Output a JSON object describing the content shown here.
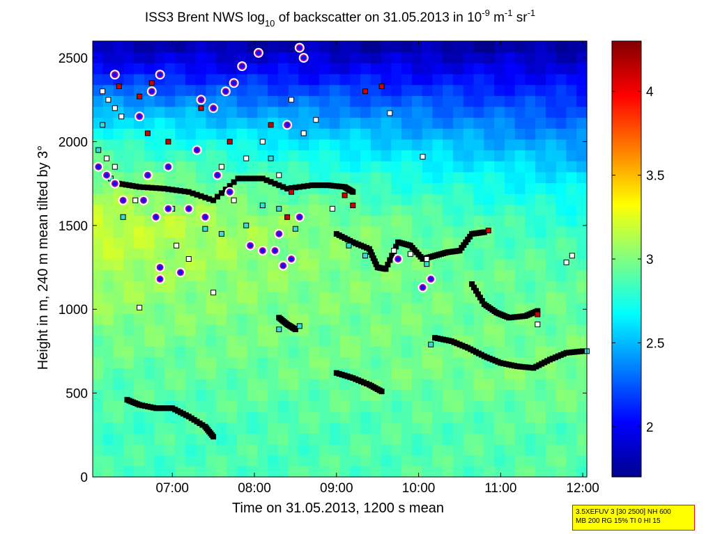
{
  "chart_data": {
    "type": "heatmap",
    "title": {
      "part1": "ISS3 Brent NWS log",
      "sub": "10",
      "part2": " of backscatter on 31.05.2013 in 10",
      "sup1": "-9",
      "part3": " m",
      "sup2": "-1",
      "part4": " sr",
      "sup3": "-1"
    },
    "xlabel": "Time on 31.05.2013, 1200 s mean",
    "ylabel": "Height in m, 240 m mean tilted by 3°",
    "xlim": [
      6.03,
      12.05
    ],
    "ylim": [
      0,
      2600
    ],
    "x_ticks": [
      7,
      8,
      9,
      10,
      11,
      12
    ],
    "x_tick_labels": [
      "07:00",
      "08:00",
      "09:00",
      "10:00",
      "11:00",
      "12:00"
    ],
    "y_ticks": [
      0,
      500,
      1000,
      1500,
      2000,
      2500
    ],
    "y_tick_labels": [
      "0",
      "500",
      "1000",
      "1500",
      "2000",
      "2500"
    ],
    "colorbar": {
      "range": [
        1.7,
        4.3
      ],
      "ticks": [
        2,
        2.5,
        3,
        3.5,
        4
      ],
      "tick_labels": [
        "2",
        "2.5",
        "3",
        "3.5",
        "4"
      ],
      "colormap": "jet"
    },
    "backscatter_profile": {
      "heights": [
        0,
        300,
        600,
        900,
        1200,
        1500,
        1800,
        2000,
        2200,
        2400,
        2600
      ],
      "values_early": [
        2.85,
        2.85,
        2.9,
        3.0,
        3.1,
        3.2,
        3.0,
        2.8,
        2.5,
        2.1,
        1.8
      ],
      "values_late": [
        2.9,
        2.9,
        3.0,
        2.95,
        2.9,
        2.8,
        2.6,
        2.4,
        2.2,
        2.0,
        1.75
      ]
    },
    "series": [
      {
        "marker": "black-square",
        "tracks": [
          {
            "x": [
              6.45,
              6.6,
              6.8,
              7.0,
              7.2,
              7.4,
              7.5
            ],
            "y": [
              460,
              430,
              410,
              410,
              360,
              300,
              240
            ]
          },
          {
            "x": [
              9.0,
              9.2,
              9.4,
              9.55
            ],
            "y": [
              620,
              590,
              550,
              510
            ]
          },
          {
            "x": [
              10.2,
              10.4,
              10.6,
              10.8,
              11.0,
              11.2,
              11.4,
              11.6,
              11.8,
              12.0
            ],
            "y": [
              830,
              810,
              770,
              720,
              680,
              660,
              650,
              700,
              740,
              750
            ]
          },
          {
            "x": [
              10.65,
              10.8,
              10.95,
              11.1,
              11.3,
              11.45
            ],
            "y": [
              1150,
              1030,
              980,
              950,
              960,
              990
            ]
          },
          {
            "x": [
              9.0,
              9.2,
              9.4,
              9.5,
              9.6,
              9.75,
              9.9,
              10.05,
              10.2,
              10.35,
              10.5,
              10.65,
              10.8
            ],
            "y": [
              1450,
              1400,
              1360,
              1250,
              1240,
              1400,
              1380,
              1300,
              1320,
              1340,
              1350,
              1450,
              1460
            ]
          },
          {
            "x": [
              6.35,
              6.6,
              6.9,
              7.2,
              7.5,
              7.8,
              8.1,
              8.4,
              8.7,
              8.9,
              9.1,
              9.2
            ],
            "y": [
              1750,
              1730,
              1720,
              1700,
              1650,
              1780,
              1780,
              1720,
              1740,
              1740,
              1730,
              1700
            ]
          },
          {
            "x": [
              8.3,
              8.4,
              8.5
            ],
            "y": [
              950,
              910,
              880
            ]
          }
        ]
      },
      {
        "marker": "white-square",
        "points": [
          {
            "x": 6.15,
            "y": 2300
          },
          {
            "x": 6.22,
            "y": 2250
          },
          {
            "x": 6.3,
            "y": 2200
          },
          {
            "x": 6.38,
            "y": 2150
          },
          {
            "x": 6.2,
            "y": 1900
          },
          {
            "x": 6.3,
            "y": 1850
          },
          {
            "x": 6.55,
            "y": 1650
          },
          {
            "x": 6.6,
            "y": 1010
          },
          {
            "x": 7.05,
            "y": 1380
          },
          {
            "x": 7.2,
            "y": 1300
          },
          {
            "x": 7.5,
            "y": 1100
          },
          {
            "x": 7.6,
            "y": 1850
          },
          {
            "x": 7.75,
            "y": 1650
          },
          {
            "x": 7.9,
            "y": 1900
          },
          {
            "x": 8.1,
            "y": 2000
          },
          {
            "x": 8.3,
            "y": 1800
          },
          {
            "x": 8.6,
            "y": 2050
          },
          {
            "x": 8.75,
            "y": 2130
          },
          {
            "x": 8.45,
            "y": 2250
          },
          {
            "x": 10.05,
            "y": 1910
          },
          {
            "x": 9.65,
            "y": 2170
          },
          {
            "x": 11.8,
            "y": 1280
          },
          {
            "x": 11.87,
            "y": 1320
          },
          {
            "x": 11.45,
            "y": 910
          },
          {
            "x": 8.95,
            "y": 1600
          },
          {
            "x": 9.7,
            "y": 1350
          },
          {
            "x": 9.9,
            "y": 1330
          },
          {
            "x": 10.1,
            "y": 1300
          }
        ]
      },
      {
        "marker": "cyan-square",
        "points": [
          {
            "x": 6.1,
            "y": 1950
          },
          {
            "x": 6.25,
            "y": 1780
          },
          {
            "x": 6.4,
            "y": 1550
          },
          {
            "x": 7.0,
            "y": 1600
          },
          {
            "x": 7.4,
            "y": 1480
          },
          {
            "x": 7.6,
            "y": 1450
          },
          {
            "x": 7.9,
            "y": 1500
          },
          {
            "x": 8.1,
            "y": 1620
          },
          {
            "x": 8.3,
            "y": 1600
          },
          {
            "x": 8.5,
            "y": 1480
          },
          {
            "x": 8.3,
            "y": 880
          },
          {
            "x": 8.55,
            "y": 900
          },
          {
            "x": 9.15,
            "y": 1380
          },
          {
            "x": 9.35,
            "y": 1320
          },
          {
            "x": 10.15,
            "y": 790
          },
          {
            "x": 10.1,
            "y": 1270
          },
          {
            "x": 12.05,
            "y": 750
          },
          {
            "x": 8.2,
            "y": 1900
          },
          {
            "x": 6.15,
            "y": 2100
          }
        ]
      },
      {
        "marker": "red-square",
        "points": [
          {
            "x": 6.35,
            "y": 2330
          },
          {
            "x": 6.6,
            "y": 2270
          },
          {
            "x": 6.7,
            "y": 2050
          },
          {
            "x": 6.95,
            "y": 2000
          },
          {
            "x": 7.35,
            "y": 2200
          },
          {
            "x": 7.7,
            "y": 2000
          },
          {
            "x": 8.2,
            "y": 2100
          },
          {
            "x": 8.45,
            "y": 1700
          },
          {
            "x": 9.1,
            "y": 1680
          },
          {
            "x": 9.2,
            "y": 1620
          },
          {
            "x": 9.35,
            "y": 2300
          },
          {
            "x": 9.55,
            "y": 2330
          },
          {
            "x": 10.85,
            "y": 1470
          },
          {
            "x": 11.45,
            "y": 970
          },
          {
            "x": 6.75,
            "y": 2350
          },
          {
            "x": 8.4,
            "y": 1550
          }
        ]
      },
      {
        "marker": "blue-dot-white-ring",
        "points": [
          {
            "x": 6.1,
            "y": 1850
          },
          {
            "x": 6.2,
            "y": 1800
          },
          {
            "x": 6.3,
            "y": 1750
          },
          {
            "x": 6.4,
            "y": 1650
          },
          {
            "x": 6.3,
            "y": 2400
          },
          {
            "x": 6.6,
            "y": 2150
          },
          {
            "x": 6.75,
            "y": 2300
          },
          {
            "x": 6.85,
            "y": 2400
          },
          {
            "x": 6.65,
            "y": 1650
          },
          {
            "x": 6.8,
            "y": 1550
          },
          {
            "x": 6.95,
            "y": 1600
          },
          {
            "x": 6.85,
            "y": 1250
          },
          {
            "x": 6.85,
            "y": 1180
          },
          {
            "x": 7.1,
            "y": 1220
          },
          {
            "x": 7.3,
            "y": 1950
          },
          {
            "x": 7.35,
            "y": 2250
          },
          {
            "x": 7.5,
            "y": 2200
          },
          {
            "x": 7.65,
            "y": 2300
          },
          {
            "x": 7.75,
            "y": 2350
          },
          {
            "x": 7.85,
            "y": 2450
          },
          {
            "x": 7.55,
            "y": 1800
          },
          {
            "x": 7.7,
            "y": 1700
          },
          {
            "x": 8.05,
            "y": 2530
          },
          {
            "x": 8.3,
            "y": 1450
          },
          {
            "x": 8.45,
            "y": 1300
          },
          {
            "x": 8.6,
            "y": 2500
          },
          {
            "x": 8.55,
            "y": 2560
          },
          {
            "x": 8.4,
            "y": 2100
          },
          {
            "x": 8.55,
            "y": 1550
          },
          {
            "x": 10.05,
            "y": 1130
          },
          {
            "x": 10.15,
            "y": 1180
          },
          {
            "x": 9.75,
            "y": 1300
          },
          {
            "x": 8.25,
            "y": 1350
          },
          {
            "x": 7.95,
            "y": 1380
          },
          {
            "x": 8.1,
            "y": 1350
          },
          {
            "x": 8.35,
            "y": 1260
          },
          {
            "x": 7.2,
            "y": 1600
          },
          {
            "x": 7.4,
            "y": 1550
          },
          {
            "x": 6.7,
            "y": 1800
          },
          {
            "x": 6.95,
            "y": 1850
          }
        ]
      }
    ]
  },
  "info_box": {
    "line1": "3.5XEFUV 3 [30 2500] NH 600",
    "line2": "MB 200 RG 15% TI 0 HI 15"
  }
}
